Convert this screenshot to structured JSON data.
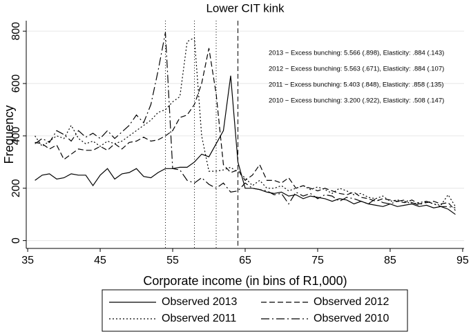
{
  "chart_data": {
    "type": "line",
    "title": "Lower CIT kink",
    "xlabel": "Corporate income (in bins of R1,000)",
    "ylabel": "Frequency",
    "x": [
      36,
      37,
      38,
      39,
      40,
      41,
      42,
      43,
      44,
      45,
      46,
      47,
      48,
      49,
      50,
      51,
      52,
      53,
      54,
      55,
      56,
      57,
      58,
      59,
      60,
      61,
      62,
      63,
      64,
      65,
      66,
      67,
      68,
      69,
      70,
      71,
      72,
      73,
      74,
      75,
      76,
      77,
      78,
      79,
      80,
      81,
      82,
      83,
      84,
      85,
      86,
      87,
      88,
      89,
      90,
      91,
      92,
      93,
      94
    ],
    "series": [
      {
        "name": "Observed 2013",
        "color": "#000000",
        "dash": "none",
        "values": [
          230,
          250,
          255,
          235,
          240,
          255,
          250,
          250,
          210,
          250,
          275,
          235,
          255,
          260,
          275,
          245,
          240,
          260,
          275,
          275,
          280,
          280,
          300,
          330,
          320,
          370,
          420,
          630,
          300,
          200,
          200,
          195,
          185,
          180,
          185,
          170,
          175,
          160,
          170,
          165,
          160,
          150,
          160,
          155,
          140,
          150,
          140,
          135,
          130,
          140,
          130,
          135,
          140,
          130,
          135,
          125,
          130,
          120,
          100
        ]
      },
      {
        "name": "Observed 2012",
        "color": "#000000",
        "dash": "8 4",
        "values": [
          375,
          370,
          350,
          365,
          310,
          330,
          350,
          345,
          345,
          360,
          345,
          370,
          350,
          375,
          380,
          395,
          380,
          385,
          400,
          420,
          470,
          480,
          520,
          600,
          735,
          560,
          290,
          260,
          270,
          230,
          250,
          290,
          230,
          230,
          220,
          240,
          200,
          210,
          200,
          190,
          200,
          190,
          180,
          175,
          185,
          165,
          160,
          150,
          160,
          155,
          150,
          145,
          155,
          140,
          145,
          150,
          140,
          145,
          115
        ]
      },
      {
        "name": "Observed 2011",
        "color": "#000000",
        "dash": "2 3",
        "values": [
          400,
          360,
          380,
          400,
          390,
          440,
          390,
          370,
          380,
          360,
          380,
          370,
          380,
          400,
          420,
          440,
          460,
          490,
          500,
          530,
          550,
          760,
          775,
          400,
          265,
          265,
          270,
          280,
          260,
          240,
          210,
          230,
          200,
          200,
          210,
          190,
          200,
          210,
          195,
          205,
          195,
          180,
          200,
          190,
          175,
          180,
          165,
          160,
          170,
          150,
          155,
          150,
          140,
          145,
          150,
          140,
          135,
          175,
          130
        ]
      },
      {
        "name": "Observed 2010",
        "color": "#000000",
        "dash": "12 4 2 4",
        "values": [
          370,
          390,
          375,
          420,
          405,
          380,
          420,
          395,
          410,
          390,
          420,
          390,
          415,
          440,
          480,
          450,
          520,
          650,
          795,
          275,
          270,
          230,
          220,
          240,
          215,
          200,
          220,
          185,
          190,
          220,
          200,
          195,
          190,
          175,
          180,
          140,
          185,
          170,
          180,
          160,
          175,
          170,
          150,
          165,
          160,
          150,
          140,
          160,
          145,
          140,
          150,
          155,
          145,
          135,
          150,
          140,
          130,
          130,
          125
        ]
      }
    ],
    "vlines": [
      {
        "x": 54,
        "dash": "1 3"
      },
      {
        "x": 58,
        "dash": "1 3"
      },
      {
        "x": 61,
        "dash": "1 3"
      },
      {
        "x": 64,
        "dash": "7 4"
      }
    ],
    "annotations": [
      "2013 − Excess bunching: 5.566 (.898), Elasticity: .884 (.143)",
      "2012 − Excess bunching: 5.563 (.671), Elasticity: .884 (.107)",
      "2011 − Excess bunching: 5.403 (.848), Elasticity: .858 (.135)",
      "2010 − Excess bunching: 3.200 (.922), Elasticity: .508 (.147)"
    ],
    "xlim": [
      34.8,
      95.2
    ],
    "xticks": [
      35,
      45,
      55,
      65,
      75,
      85,
      95
    ],
    "ylim": [
      -30,
      840
    ],
    "yticks": [
      0,
      200,
      400,
      600,
      800
    ],
    "grid": true
  }
}
